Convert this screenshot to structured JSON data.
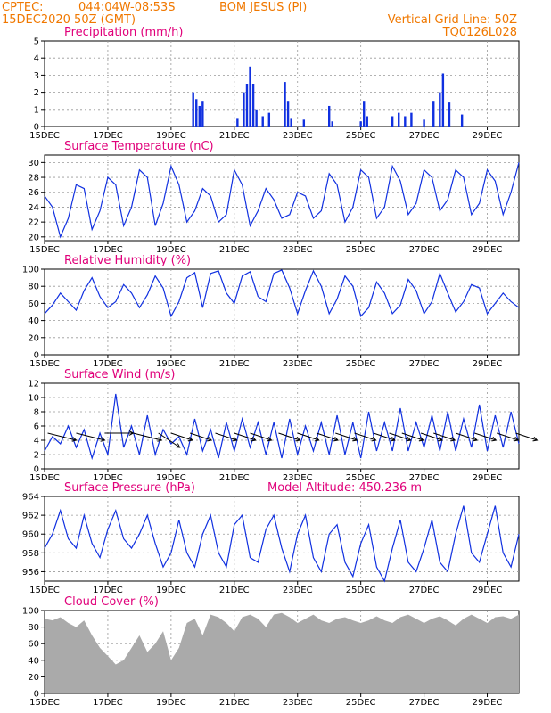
{
  "header": {
    "source": "CPTEC:",
    "location_coords": "044:04W-08:53S",
    "location_name": "BOM JESUS (PI)",
    "issue_time": "15DEC2020 50Z (GMT)",
    "grid_note": "Vertical Grid Line: 50Z",
    "model_code": "TQ0126L028"
  },
  "model_altitude": "Model Altitude: 450.236 m",
  "colors": {
    "header": "#f07800",
    "panel_title": "#e0007a",
    "series": "#1030e0",
    "cloud": "#aaaaaa"
  },
  "chart_data": [
    {
      "type": "bar",
      "title": "Precipitation (mm/h)",
      "x_tick_labels": [
        "15DEC",
        "17DEC",
        "19DEC",
        "21DEC",
        "23DEC",
        "25DEC",
        "27DEC",
        "29DEC"
      ],
      "x_range_days": [
        15,
        30
      ],
      "ylim": [
        0,
        5
      ],
      "y_ticks": [
        0,
        1,
        2,
        3,
        4,
        5
      ],
      "grid": true,
      "x": [
        19.7,
        19.8,
        19.9,
        20.0,
        21.1,
        21.3,
        21.4,
        21.5,
        21.6,
        21.7,
        21.9,
        22.1,
        22.6,
        22.7,
        22.8,
        23.2,
        24.0,
        24.1,
        25.0,
        25.1,
        25.2,
        26.0,
        26.2,
        26.4,
        26.6,
        27.0,
        27.3,
        27.5,
        27.6,
        27.8,
        28.2
      ],
      "values": [
        2.0,
        1.6,
        1.2,
        1.5,
        0.5,
        2.0,
        2.5,
        3.5,
        2.5,
        1.0,
        0.6,
        0.8,
        2.6,
        1.5,
        0.5,
        0.4,
        1.2,
        0.3,
        0.3,
        1.5,
        0.6,
        0.6,
        0.8,
        0.6,
        0.8,
        0.4,
        1.5,
        2.0,
        3.1,
        1.4,
        0.7
      ]
    },
    {
      "type": "line",
      "title": "Surface Temperature (nC)",
      "x_tick_labels": [
        "15DEC",
        "17DEC",
        "19DEC",
        "21DEC",
        "23DEC",
        "25DEC",
        "27DEC",
        "29DEC"
      ],
      "x_range_days": [
        15,
        30
      ],
      "ylim": [
        19.5,
        31
      ],
      "y_ticks": [
        20,
        22,
        24,
        26,
        28,
        30
      ],
      "grid": true,
      "x": [
        15.0,
        15.25,
        15.5,
        15.75,
        16.0,
        16.25,
        16.5,
        16.75,
        17.0,
        17.25,
        17.5,
        17.75,
        18.0,
        18.25,
        18.5,
        18.75,
        19.0,
        19.25,
        19.5,
        19.75,
        20.0,
        20.25,
        20.5,
        20.75,
        21.0,
        21.25,
        21.5,
        21.75,
        22.0,
        22.25,
        22.5,
        22.75,
        23.0,
        23.25,
        23.5,
        23.75,
        24.0,
        24.25,
        24.5,
        24.75,
        25.0,
        25.25,
        25.5,
        25.75,
        26.0,
        26.25,
        26.5,
        26.75,
        27.0,
        27.25,
        27.5,
        27.75,
        28.0,
        28.25,
        28.5,
        28.75,
        29.0,
        29.25,
        29.5,
        29.75,
        30.0
      ],
      "values": [
        25.5,
        24.0,
        20.0,
        22.5,
        27.0,
        26.5,
        21.0,
        23.5,
        28.0,
        27.0,
        21.5,
        24.0,
        29.0,
        28.0,
        21.5,
        24.5,
        29.5,
        27.0,
        22.0,
        23.5,
        26.5,
        25.5,
        22.0,
        23.0,
        29.0,
        27.0,
        21.5,
        23.5,
        26.5,
        25.0,
        22.5,
        23.0,
        26.0,
        25.5,
        22.5,
        23.5,
        28.5,
        27.0,
        22.0,
        24.0,
        29.0,
        28.0,
        22.5,
        24.0,
        29.5,
        27.5,
        23.0,
        24.5,
        29.0,
        28.0,
        23.5,
        25.0,
        29.0,
        28.0,
        23.0,
        24.5,
        29.0,
        27.5,
        23.0,
        26.0,
        30.0
      ]
    },
    {
      "type": "line",
      "title": "Relative Humidity (%)",
      "x_tick_labels": [
        "15DEC",
        "17DEC",
        "19DEC",
        "21DEC",
        "23DEC",
        "25DEC",
        "27DEC",
        "29DEC"
      ],
      "x_range_days": [
        15,
        30
      ],
      "ylim": [
        0,
        100
      ],
      "y_ticks": [
        0,
        20,
        40,
        60,
        80,
        100
      ],
      "grid": true,
      "x": [
        15.0,
        15.25,
        15.5,
        15.75,
        16.0,
        16.25,
        16.5,
        16.75,
        17.0,
        17.25,
        17.5,
        17.75,
        18.0,
        18.25,
        18.5,
        18.75,
        19.0,
        19.25,
        19.5,
        19.75,
        20.0,
        20.25,
        20.5,
        20.75,
        21.0,
        21.25,
        21.5,
        21.75,
        22.0,
        22.25,
        22.5,
        22.75,
        23.0,
        23.25,
        23.5,
        23.75,
        24.0,
        24.25,
        24.5,
        24.75,
        25.0,
        25.25,
        25.5,
        25.75,
        26.0,
        26.25,
        26.5,
        26.75,
        27.0,
        27.25,
        27.5,
        27.75,
        28.0,
        28.25,
        28.5,
        28.75,
        29.0,
        29.25,
        29.5,
        29.75,
        30.0
      ],
      "values": [
        48,
        58,
        72,
        62,
        52,
        75,
        90,
        68,
        55,
        62,
        82,
        72,
        55,
        70,
        92,
        78,
        45,
        62,
        90,
        96,
        55,
        95,
        98,
        72,
        60,
        92,
        97,
        68,
        62,
        95,
        99,
        78,
        48,
        75,
        98,
        80,
        48,
        65,
        92,
        80,
        45,
        55,
        85,
        72,
        48,
        58,
        88,
        75,
        48,
        62,
        95,
        72,
        50,
        62,
        82,
        78,
        48,
        60,
        72,
        62,
        55
      ]
    },
    {
      "type": "line",
      "title": "Surface Wind (m/s)",
      "x_tick_labels": [
        "15DEC",
        "17DEC",
        "19DEC",
        "21DEC",
        "23DEC",
        "25DEC",
        "27DEC",
        "29DEC"
      ],
      "x_range_days": [
        15,
        30
      ],
      "ylim": [
        0,
        12
      ],
      "y_ticks": [
        0,
        2,
        4,
        6,
        8,
        10,
        12
      ],
      "grid": true,
      "x": [
        15.0,
        15.25,
        15.5,
        15.75,
        16.0,
        16.25,
        16.5,
        16.75,
        17.0,
        17.25,
        17.5,
        17.75,
        18.0,
        18.25,
        18.5,
        18.75,
        19.0,
        19.25,
        19.5,
        19.75,
        20.0,
        20.25,
        20.5,
        20.75,
        21.0,
        21.25,
        21.5,
        21.75,
        22.0,
        22.25,
        22.5,
        22.75,
        23.0,
        23.25,
        23.5,
        23.75,
        24.0,
        24.25,
        24.5,
        24.75,
        25.0,
        25.25,
        25.5,
        25.75,
        26.0,
        26.25,
        26.5,
        26.75,
        27.0,
        27.25,
        27.5,
        27.75,
        28.0,
        28.25,
        28.5,
        28.75,
        29.0,
        29.25,
        29.5,
        29.75,
        30.0
      ],
      "values": [
        2.5,
        4.5,
        3.5,
        6.0,
        3.0,
        5.5,
        1.5,
        5.0,
        2.0,
        10.5,
        3.0,
        6.0,
        2.0,
        7.5,
        2.0,
        5.5,
        3.5,
        4.5,
        2.0,
        7.0,
        2.5,
        5.5,
        1.5,
        6.5,
        2.5,
        7.0,
        3.0,
        6.5,
        2.0,
        6.5,
        1.5,
        7.0,
        2.0,
        6.0,
        2.5,
        6.5,
        2.0,
        7.5,
        2.0,
        6.5,
        1.5,
        8.0,
        2.5,
        6.5,
        2.5,
        8.5,
        2.5,
        6.5,
        3.0,
        7.5,
        2.5,
        8.0,
        2.5,
        7.0,
        3.0,
        9.0,
        2.5,
        7.5,
        3.0,
        8.0,
        3.5
      ],
      "vectors": {
        "x": [
          15.1,
          16.0,
          16.9,
          17.8,
          18.6,
          19.0,
          19.6,
          20.4,
          21.0,
          21.5,
          22.4,
          23.0,
          23.6,
          24.2,
          24.8,
          25.4,
          25.9,
          26.3,
          26.9,
          27.3,
          28.0,
          28.6,
          29.3,
          29.9
        ],
        "u": [
          4,
          4,
          4,
          4,
          3,
          3,
          3,
          3,
          3,
          3,
          3,
          3,
          3,
          3,
          3,
          3,
          3,
          3,
          3,
          3,
          3,
          3,
          3,
          3
        ],
        "v": [
          -1,
          -1,
          0,
          -1,
          -2,
          -1,
          -1,
          -1,
          -1,
          -1,
          -1,
          -1,
          -1,
          -1,
          -1,
          -1,
          -1,
          -1,
          -1,
          -1,
          -1,
          -1,
          -1,
          -1
        ]
      }
    },
    {
      "type": "line",
      "title": "Surface Pressure (hPa)",
      "x_tick_labels": [
        "15DEC",
        "17DEC",
        "19DEC",
        "21DEC",
        "23DEC",
        "25DEC",
        "27DEC",
        "29DEC"
      ],
      "x_range_days": [
        15,
        30
      ],
      "ylim": [
        955,
        964
      ],
      "y_ticks": [
        956,
        958,
        960,
        962,
        964
      ],
      "grid": true,
      "x": [
        15.0,
        15.25,
        15.5,
        15.75,
        16.0,
        16.25,
        16.5,
        16.75,
        17.0,
        17.25,
        17.5,
        17.75,
        18.0,
        18.25,
        18.5,
        18.75,
        19.0,
        19.25,
        19.5,
        19.75,
        20.0,
        20.25,
        20.5,
        20.75,
        21.0,
        21.25,
        21.5,
        21.75,
        22.0,
        22.25,
        22.5,
        22.75,
        23.0,
        23.25,
        23.5,
        23.75,
        24.0,
        24.25,
        24.5,
        24.75,
        25.0,
        25.25,
        25.5,
        25.75,
        26.0,
        26.25,
        26.5,
        26.75,
        27.0,
        27.25,
        27.5,
        27.75,
        28.0,
        28.25,
        28.5,
        28.75,
        29.0,
        29.25,
        29.5,
        29.75,
        30.0
      ],
      "values": [
        958.5,
        960.0,
        962.5,
        959.5,
        958.5,
        962.0,
        959.0,
        957.5,
        960.5,
        962.5,
        959.5,
        958.5,
        960.0,
        962.0,
        959.0,
        956.5,
        958.0,
        961.5,
        958.0,
        956.5,
        960.0,
        962.0,
        958.0,
        956.5,
        961.0,
        962.0,
        957.5,
        957.0,
        960.5,
        962.0,
        958.5,
        956.0,
        960.0,
        962.0,
        957.5,
        956.0,
        960.0,
        961.0,
        957.0,
        955.5,
        959.0,
        961.0,
        956.5,
        955.0,
        958.5,
        961.5,
        957.0,
        956.0,
        958.5,
        961.5,
        957.0,
        956.0,
        960.0,
        963.0,
        958.0,
        957.0,
        960.0,
        963.0,
        958.0,
        956.5,
        960.0
      ]
    },
    {
      "type": "area",
      "title": "Cloud Cover (%)",
      "x_tick_labels": [
        "15DEC",
        "17DEC",
        "19DEC",
        "21DEC",
        "23DEC",
        "25DEC",
        "27DEC",
        "29DEC"
      ],
      "x_range_days": [
        15,
        30
      ],
      "ylim": [
        0,
        100
      ],
      "y_ticks": [
        0,
        20,
        40,
        60,
        80,
        100
      ],
      "grid": true,
      "x": [
        15.0,
        15.25,
        15.5,
        15.75,
        16.0,
        16.25,
        16.5,
        16.75,
        17.0,
        17.25,
        17.5,
        17.75,
        18.0,
        18.25,
        18.5,
        18.75,
        19.0,
        19.25,
        19.5,
        19.75,
        20.0,
        20.25,
        20.5,
        20.75,
        21.0,
        21.25,
        21.5,
        21.75,
        22.0,
        22.25,
        22.5,
        22.75,
        23.0,
        23.25,
        23.5,
        23.75,
        24.0,
        24.25,
        24.5,
        24.75,
        25.0,
        25.25,
        25.5,
        25.75,
        26.0,
        26.25,
        26.5,
        26.75,
        27.0,
        27.25,
        27.5,
        27.75,
        28.0,
        28.25,
        28.5,
        28.75,
        29.0,
        29.25,
        29.5,
        29.75,
        30.0
      ],
      "values": [
        90,
        88,
        92,
        85,
        80,
        88,
        70,
        55,
        45,
        35,
        40,
        55,
        70,
        50,
        60,
        75,
        40,
        55,
        85,
        90,
        70,
        95,
        92,
        85,
        75,
        92,
        95,
        90,
        80,
        95,
        97,
        92,
        85,
        90,
        95,
        88,
        85,
        90,
        92,
        88,
        85,
        88,
        93,
        88,
        85,
        92,
        95,
        90,
        85,
        90,
        93,
        88,
        82,
        90,
        95,
        90,
        85,
        92,
        93,
        90,
        95
      ]
    }
  ]
}
